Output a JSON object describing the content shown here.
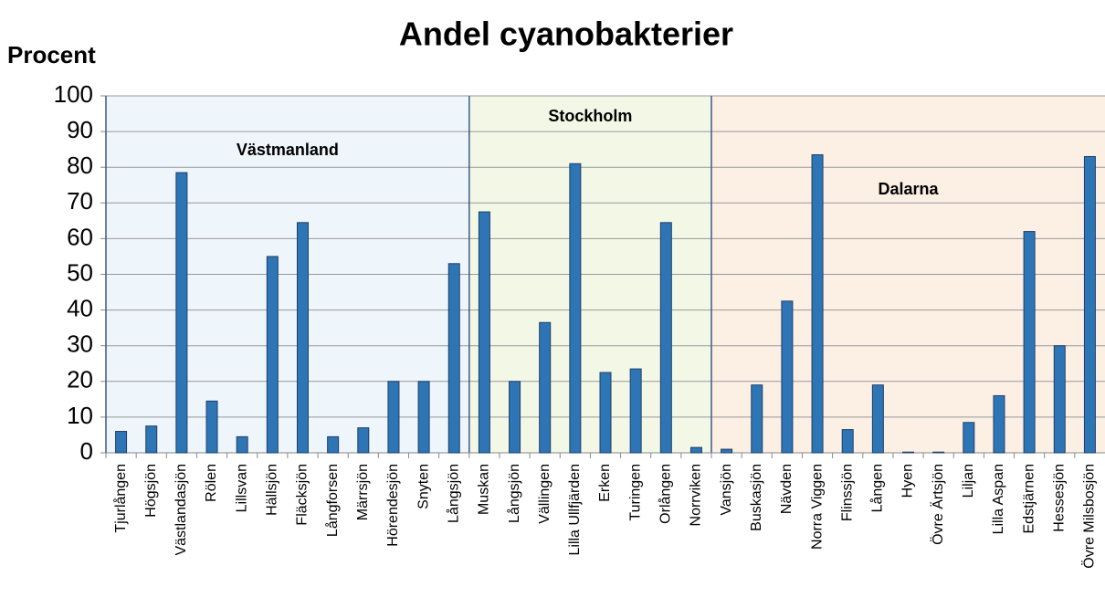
{
  "chart_data": {
    "type": "bar",
    "title": "Andel cyanobakterier",
    "y_label": "Procent",
    "color": "#2e75b6",
    "ylim": [
      0,
      100
    ],
    "yticks": [
      0,
      10,
      20,
      30,
      40,
      50,
      60,
      70,
      80,
      90,
      100
    ],
    "grid": true,
    "groups": [
      {
        "name": "Västmanland",
        "background": "#eef5fb",
        "categories": [
          "Tjurlången",
          "Högsjön",
          "Västlandasjön",
          "Rölen",
          "Lillsvan",
          "Hällsjön",
          "Fläcksjön",
          "Långforsen",
          "Märrsjön",
          "Hörendesjön",
          "Snyten",
          "Långsjön"
        ],
        "values": [
          6,
          7.5,
          78.5,
          14.5,
          4.5,
          55,
          64.5,
          4.5,
          7,
          20,
          20,
          53
        ]
      },
      {
        "name": "Stockholm",
        "background": "#f3f8e6",
        "categories": [
          "Muskan",
          "Långsjön",
          "Vällingen",
          "Lilla Ullfjärden",
          "Erken",
          "Turingen",
          "Orlången",
          "Norrviken"
        ],
        "values": [
          67.5,
          20,
          36.5,
          81,
          22.5,
          23.5,
          64.5,
          1.5
        ]
      },
      {
        "name": "Dalarna",
        "background": "#fcefe4",
        "categories": [
          "Vansjön",
          "Buskasjön",
          "Nävden",
          "Norra Viggen",
          "Flinssjön",
          "Lången",
          "Hyen",
          "Övre Ärtsjön",
          "Liljan",
          "Lilla Aspan",
          "Edstjärnen",
          "Hessesjön",
          "Övre Milsbosjön"
        ],
        "values": [
          1,
          19,
          42.5,
          83.5,
          6.5,
          19,
          0.2,
          0.2,
          8.5,
          16,
          62,
          30,
          83
        ]
      }
    ]
  }
}
